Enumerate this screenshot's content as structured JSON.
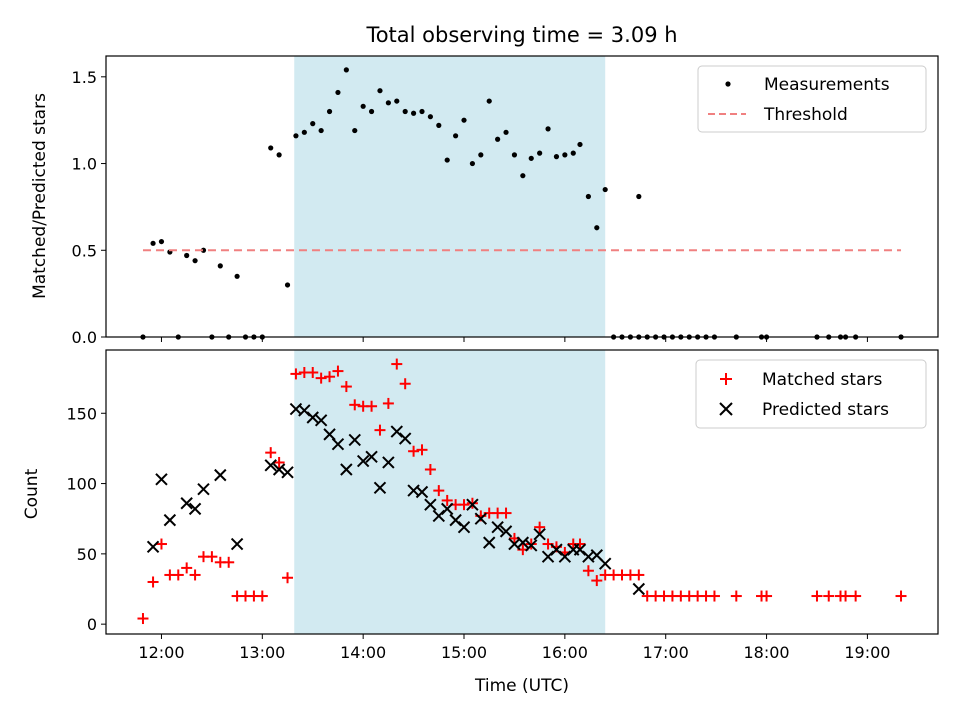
{
  "chart_data": [
    {
      "type": "scatter",
      "title": "Total observing time = 3.09 h",
      "xlabel": "",
      "ylabel": "Matched/Predicted stars",
      "ylim": [
        0,
        1.62
      ],
      "xlim": [
        "11:27",
        "19:42"
      ],
      "yticks": [
        "0.0",
        "0.5",
        "1.0",
        "1.5"
      ],
      "highlight_span": {
        "start": "13:19",
        "end": "16:24",
        "color": "#add8e6"
      },
      "legend_position": "top-right",
      "series": [
        {
          "name": "Measurements",
          "marker": "dot",
          "color": "#000000",
          "points": [
            [
              "11:49",
              0.0
            ],
            [
              "11:55",
              0.54
            ],
            [
              "12:00",
              0.55
            ],
            [
              "12:05",
              0.49
            ],
            [
              "12:10",
              0.0
            ],
            [
              "12:15",
              0.47
            ],
            [
              "12:20",
              0.44
            ],
            [
              "12:25",
              0.5
            ],
            [
              "12:30",
              0.0
            ],
            [
              "12:35",
              0.41
            ],
            [
              "12:40",
              0.0
            ],
            [
              "12:45",
              0.35
            ],
            [
              "12:50",
              0.0
            ],
            [
              "12:55",
              0.0
            ],
            [
              "13:00",
              0.0
            ],
            [
              "13:05",
              1.09
            ],
            [
              "13:10",
              1.05
            ],
            [
              "13:15",
              0.3
            ],
            [
              "13:20",
              1.16
            ],
            [
              "13:25",
              1.18
            ],
            [
              "13:30",
              1.23
            ],
            [
              "13:35",
              1.19
            ],
            [
              "13:40",
              1.3
            ],
            [
              "13:45",
              1.41
            ],
            [
              "13:50",
              1.54
            ],
            [
              "13:55",
              1.19
            ],
            [
              "14:00",
              1.33
            ],
            [
              "14:05",
              1.3
            ],
            [
              "14:10",
              1.42
            ],
            [
              "14:15",
              1.35
            ],
            [
              "14:20",
              1.36
            ],
            [
              "14:25",
              1.3
            ],
            [
              "14:30",
              1.29
            ],
            [
              "14:35",
              1.3
            ],
            [
              "14:40",
              1.27
            ],
            [
              "14:45",
              1.22
            ],
            [
              "14:50",
              1.02
            ],
            [
              "14:55",
              1.16
            ],
            [
              "15:00",
              1.25
            ],
            [
              "15:05",
              1.0
            ],
            [
              "15:10",
              1.05
            ],
            [
              "15:15",
              1.36
            ],
            [
              "15:20",
              1.14
            ],
            [
              "15:25",
              1.18
            ],
            [
              "15:30",
              1.05
            ],
            [
              "15:35",
              0.93
            ],
            [
              "15:40",
              1.03
            ],
            [
              "15:45",
              1.06
            ],
            [
              "15:50",
              1.2
            ],
            [
              "15:55",
              1.04
            ],
            [
              "16:00",
              1.05
            ],
            [
              "16:05",
              1.06
            ],
            [
              "16:09",
              1.11
            ],
            [
              "16:14",
              0.81
            ],
            [
              "16:19",
              0.63
            ],
            [
              "16:24",
              0.85
            ],
            [
              "16:29",
              0.0
            ],
            [
              "16:34",
              0.0
            ],
            [
              "16:39",
              0.0
            ],
            [
              "16:44",
              0.81
            ],
            [
              "16:44",
              0.0
            ],
            [
              "16:49",
              0.0
            ],
            [
              "16:54",
              0.0
            ],
            [
              "16:59",
              0.0
            ],
            [
              "17:04",
              0.0
            ],
            [
              "17:09",
              0.0
            ],
            [
              "17:14",
              0.0
            ],
            [
              "17:19",
              0.0
            ],
            [
              "17:24",
              0.0
            ],
            [
              "17:29",
              0.0
            ],
            [
              "17:42",
              0.0
            ],
            [
              "17:57",
              0.0
            ],
            [
              "18:00",
              0.0
            ],
            [
              "18:30",
              0.0
            ],
            [
              "18:37",
              0.0
            ],
            [
              "18:44",
              0.0
            ],
            [
              "18:47",
              0.0
            ],
            [
              "18:53",
              0.0
            ],
            [
              "19:20",
              0.0
            ]
          ]
        },
        {
          "name": "Threshold",
          "marker": "dashed-line",
          "color": "#f08080",
          "points": [
            [
              "11:49",
              0.5
            ],
            [
              "19:20",
              0.5
            ]
          ]
        }
      ]
    },
    {
      "type": "scatter",
      "title": "",
      "xlabel": "Time (UTC)",
      "ylabel": "Count",
      "ylim": [
        -7,
        195
      ],
      "xlim": [
        "11:27",
        "19:42"
      ],
      "yticks": [
        "0",
        "50",
        "100",
        "150"
      ],
      "xticks": [
        "12:00",
        "13:00",
        "14:00",
        "15:00",
        "16:00",
        "17:00",
        "18:00",
        "19:00"
      ],
      "highlight_span": {
        "start": "13:19",
        "end": "16:24",
        "color": "#add8e6"
      },
      "legend_position": "top-right",
      "series": [
        {
          "name": "Matched stars",
          "marker": "plus",
          "color": "#ff0000",
          "points": [
            [
              "11:49",
              4
            ],
            [
              "11:55",
              30
            ],
            [
              "12:00",
              57
            ],
            [
              "12:05",
              35
            ],
            [
              "12:10",
              35
            ],
            [
              "12:15",
              40
            ],
            [
              "12:20",
              35
            ],
            [
              "12:25",
              48
            ],
            [
              "12:30",
              48
            ],
            [
              "12:35",
              44
            ],
            [
              "12:40",
              44
            ],
            [
              "12:45",
              20
            ],
            [
              "12:50",
              20
            ],
            [
              "12:55",
              20
            ],
            [
              "13:00",
              20
            ],
            [
              "13:05",
              122
            ],
            [
              "13:10",
              115
            ],
            [
              "13:15",
              33
            ],
            [
              "13:20",
              178
            ],
            [
              "13:25",
              179
            ],
            [
              "13:30",
              179
            ],
            [
              "13:35",
              175
            ],
            [
              "13:40",
              176
            ],
            [
              "13:45",
              180
            ],
            [
              "13:50",
              169
            ],
            [
              "13:55",
              156
            ],
            [
              "14:00",
              155
            ],
            [
              "14:05",
              155
            ],
            [
              "14:10",
              138
            ],
            [
              "14:15",
              157
            ],
            [
              "14:20",
              185
            ],
            [
              "14:25",
              171
            ],
            [
              "14:30",
              123
            ],
            [
              "14:35",
              124
            ],
            [
              "14:40",
              110
            ],
            [
              "14:45",
              95
            ],
            [
              "14:50",
              88
            ],
            [
              "14:55",
              85
            ],
            [
              "15:00",
              85
            ],
            [
              "15:05",
              86
            ],
            [
              "15:10",
              77
            ],
            [
              "15:15",
              79
            ],
            [
              "15:20",
              79
            ],
            [
              "15:25",
              79
            ],
            [
              "15:30",
              61
            ],
            [
              "15:35",
              53
            ],
            [
              "15:40",
              57
            ],
            [
              "15:45",
              69
            ],
            [
              "15:50",
              57
            ],
            [
              "15:55",
              55
            ],
            [
              "16:00",
              51
            ],
            [
              "16:05",
              57
            ],
            [
              "16:09",
              57
            ],
            [
              "16:14",
              38
            ],
            [
              "16:19",
              31
            ],
            [
              "16:24",
              35
            ],
            [
              "16:29",
              35
            ],
            [
              "16:34",
              35
            ],
            [
              "16:39",
              35
            ],
            [
              "16:44",
              35
            ],
            [
              "16:49",
              20
            ],
            [
              "16:54",
              20
            ],
            [
              "16:59",
              20
            ],
            [
              "17:04",
              20
            ],
            [
              "17:09",
              20
            ],
            [
              "17:14",
              20
            ],
            [
              "17:19",
              20
            ],
            [
              "17:24",
              20
            ],
            [
              "17:29",
              20
            ],
            [
              "17:42",
              20
            ],
            [
              "17:57",
              20
            ],
            [
              "18:00",
              20
            ],
            [
              "18:30",
              20
            ],
            [
              "18:37",
              20
            ],
            [
              "18:44",
              20
            ],
            [
              "18:47",
              20
            ],
            [
              "18:53",
              20
            ],
            [
              "19:20",
              20
            ]
          ]
        },
        {
          "name": "Predicted stars",
          "marker": "x",
          "color": "#000000",
          "points": [
            [
              "11:55",
              55
            ],
            [
              "12:00",
              103
            ],
            [
              "12:05",
              74
            ],
            [
              "12:15",
              86
            ],
            [
              "12:20",
              82
            ],
            [
              "12:25",
              96
            ],
            [
              "12:35",
              106
            ],
            [
              "12:45",
              57
            ],
            [
              "13:05",
              113
            ],
            [
              "13:10",
              110
            ],
            [
              "13:15",
              108
            ],
            [
              "13:20",
              153
            ],
            [
              "13:25",
              152
            ],
            [
              "13:30",
              147
            ],
            [
              "13:35",
              145
            ],
            [
              "13:40",
              135
            ],
            [
              "13:45",
              128
            ],
            [
              "13:50",
              110
            ],
            [
              "13:55",
              131
            ],
            [
              "14:00",
              116
            ],
            [
              "14:05",
              119
            ],
            [
              "14:10",
              97
            ],
            [
              "14:15",
              115
            ],
            [
              "14:20",
              137
            ],
            [
              "14:25",
              132
            ],
            [
              "14:30",
              95
            ],
            [
              "14:35",
              94
            ],
            [
              "14:40",
              85
            ],
            [
              "14:45",
              77
            ],
            [
              "14:50",
              82
            ],
            [
              "14:55",
              74
            ],
            [
              "15:00",
              69
            ],
            [
              "15:05",
              85
            ],
            [
              "15:10",
              75
            ],
            [
              "15:15",
              58
            ],
            [
              "15:20",
              69
            ],
            [
              "15:25",
              66
            ],
            [
              "15:30",
              57
            ],
            [
              "15:35",
              58
            ],
            [
              "15:40",
              56
            ],
            [
              "15:45",
              64
            ],
            [
              "15:50",
              48
            ],
            [
              "15:55",
              53
            ],
            [
              "16:00",
              48
            ],
            [
              "16:05",
              53
            ],
            [
              "16:09",
              53
            ],
            [
              "16:14",
              48
            ],
            [
              "16:19",
              49
            ],
            [
              "16:24",
              43
            ],
            [
              "16:44",
              25
            ]
          ]
        }
      ]
    }
  ]
}
